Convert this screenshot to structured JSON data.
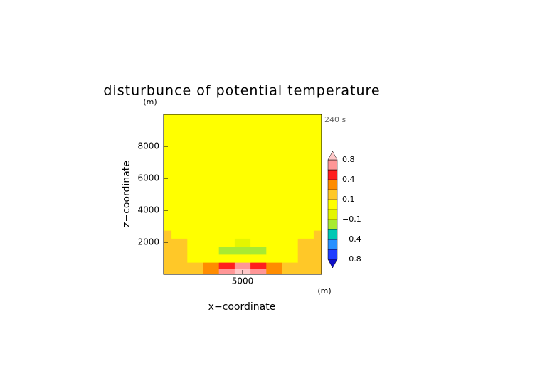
{
  "chart_data": {
    "type": "contour",
    "title": "disturbunce of potential temperature",
    "xlabel": "x−coordinate",
    "ylabel": "z−coordinate",
    "x_unit": "(m)",
    "y_unit": "(m)",
    "annotation": "240 s",
    "x": [
      0,
      1000,
      2000,
      3000,
      4000,
      5000,
      6000,
      7000,
      8000,
      9000,
      10000
    ],
    "z": [
      0,
      250,
      500,
      1000,
      1500,
      2000,
      2500,
      3000,
      4000,
      6000,
      8000,
      10000
    ],
    "values": [
      [
        0.15,
        0.15,
        0.18,
        0.35,
        0.7,
        0.9,
        0.7,
        0.35,
        0.18,
        0.15,
        0.15
      ],
      [
        0.15,
        0.15,
        0.17,
        0.3,
        0.6,
        0.85,
        0.6,
        0.3,
        0.17,
        0.15,
        0.15
      ],
      [
        0.15,
        0.14,
        0.15,
        0.22,
        0.45,
        0.6,
        0.45,
        0.22,
        0.15,
        0.14,
        0.15
      ],
      [
        0.15,
        0.13,
        0.08,
        0.06,
        0.05,
        0.03,
        0.05,
        0.06,
        0.08,
        0.13,
        0.15
      ],
      [
        0.14,
        0.12,
        0.06,
        0.03,
        -0.12,
        -0.15,
        -0.12,
        0.03,
        0.06,
        0.12,
        0.14
      ],
      [
        0.13,
        0.11,
        0.05,
        0.02,
        0,
        -0.02,
        0,
        0.02,
        0.05,
        0.11,
        0.13
      ],
      [
        0.12,
        0.09,
        0.04,
        0.02,
        0.01,
        0.01,
        0.01,
        0.02,
        0.04,
        0.09,
        0.12
      ],
      [
        0.09,
        0.06,
        0.03,
        0.02,
        0.01,
        0.01,
        0.01,
        0.02,
        0.03,
        0.06,
        0.09
      ],
      [
        0.03,
        0.03,
        0.03,
        0.03,
        0.03,
        0.03,
        0.03,
        0.03,
        0.03,
        0.03,
        0.03
      ],
      [
        0.02,
        0.02,
        0.02,
        0.02,
        0.02,
        0.02,
        0.02,
        0.02,
        0.02,
        0.02,
        0.02
      ],
      [
        0.02,
        0.02,
        0.02,
        0.02,
        0.02,
        0.02,
        0.02,
        0.02,
        0.02,
        0.02,
        0.02
      ],
      [
        0.02,
        0.02,
        0.02,
        0.02,
        0.02,
        0.02,
        0.02,
        0.02,
        0.02,
        0.02,
        0.02
      ]
    ],
    "xlim": [
      0,
      10000
    ],
    "ylim": [
      0,
      10000
    ],
    "xticks": [
      5000
    ],
    "yticks": [
      2000,
      4000,
      6000,
      8000
    ],
    "levels": [
      -0.8,
      -0.6,
      -0.4,
      -0.2,
      -0.1,
      0,
      0.1,
      0.2,
      0.4,
      0.6,
      0.8
    ],
    "colors": [
      "#1010c8",
      "#1e3cff",
      "#2890ff",
      "#00c8b4",
      "#a8ea32",
      "#e4f500",
      "#ffff00",
      "#ffc828",
      "#ff8c00",
      "#ff1e1e",
      "#ff9696",
      "#ffc8c8"
    ],
    "colorbar_ticks": [
      {
        "value": 0.8,
        "label": "0.8"
      },
      {
        "value": 0.4,
        "label": "0.4"
      },
      {
        "value": 0.1,
        "label": "0.1"
      },
      {
        "value": -0.1,
        "label": "−0.1"
      },
      {
        "value": -0.4,
        "label": "−0.4"
      },
      {
        "value": -0.8,
        "label": "−0.8"
      }
    ]
  }
}
